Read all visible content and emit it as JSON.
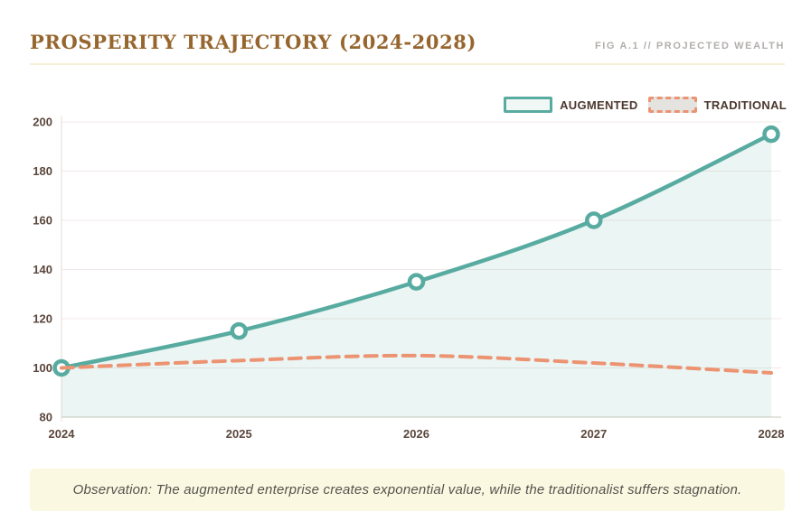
{
  "header": {
    "title": "PROSPERITY TRAJECTORY (2024-2028)",
    "fig_label": "FIG A.1 // PROJECTED WEALTH"
  },
  "legend": {
    "items": [
      {
        "label": "AUGMENTED",
        "color": "#58ABA0",
        "fill": "#F1F7F5",
        "style": "solid"
      },
      {
        "label": "TRADITIONAL",
        "color": "#EC9372",
        "fill": "#E5E3E0",
        "style": "dashed"
      }
    ]
  },
  "chart_data": {
    "type": "line",
    "title": "PROSPERITY TRAJECTORY (2024-2028)",
    "xlabel": "",
    "ylabel": "",
    "x": [
      "2024",
      "2025",
      "2026",
      "2027",
      "2028"
    ],
    "series": [
      {
        "name": "AUGMENTED",
        "values": [
          100,
          115,
          135,
          160,
          195
        ],
        "color": "#58ABA0",
        "style": "solid",
        "markers": true,
        "area_fill": "rgba(88,171,160,0.12)"
      },
      {
        "name": "TRADITIONAL",
        "values": [
          100,
          103,
          105,
          102,
          98
        ],
        "color": "#EC9372",
        "style": "dashed",
        "markers": false,
        "area_fill": null
      }
    ],
    "ylim": [
      80,
      200
    ],
    "yticks": [
      80,
      100,
      120,
      140,
      160,
      180,
      200
    ],
    "grid": true,
    "legend_position": "top-right"
  },
  "observation": {
    "text": "Observation: The augmented enterprise creates exponential value, while the traditionalist suffers stagnation."
  },
  "colors": {
    "title_brown": "#96662E",
    "fig_label_gray": "#B2AFAC",
    "tick_brown": "#5A463C",
    "legend_text_brown": "#4C382E",
    "gridline": "#F1E9E7",
    "baseline": "#DCD9D4",
    "y_axis_line": "#E6DDD9",
    "divider_yellow": "#F6F0D4",
    "observation_bg": "#FBF8E2",
    "augmented_teal": "#58ABA0",
    "traditional_salmon": "#EC9372"
  }
}
